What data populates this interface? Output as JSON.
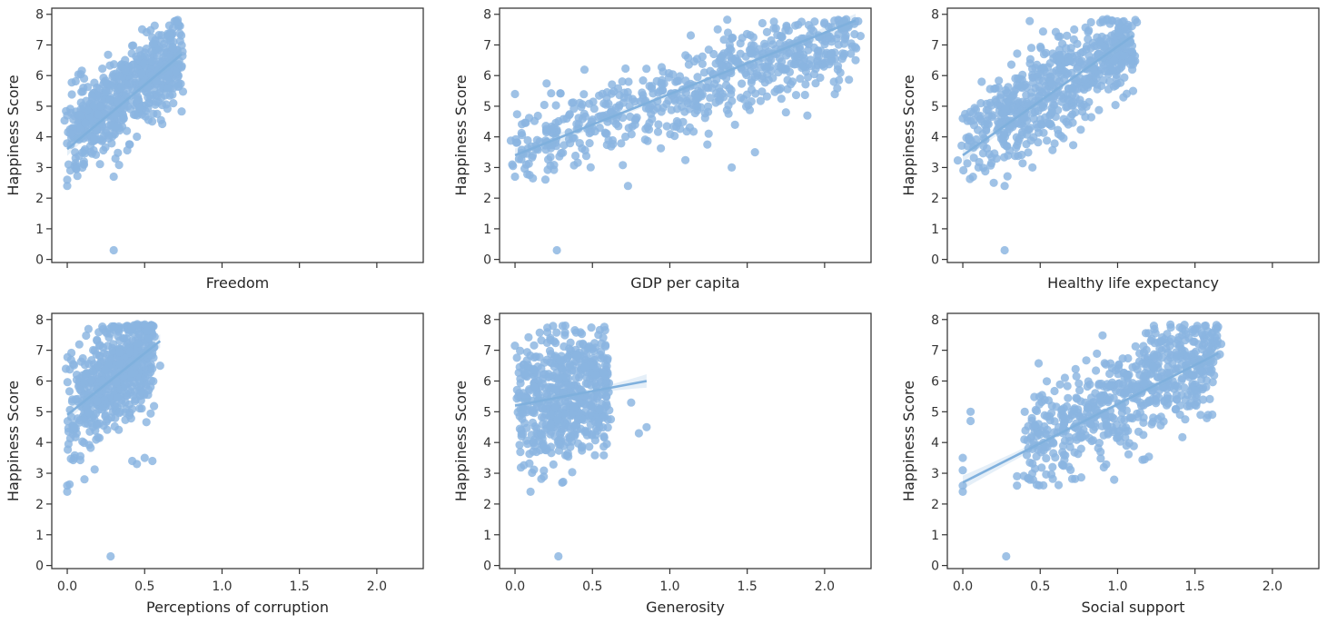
{
  "chart_data": [
    {
      "type": "scatter",
      "xlabel": "Freedom",
      "ylabel": "Happiness Score",
      "xlim": [
        -0.1,
        2.3
      ],
      "ylim": [
        -0.1,
        8.2
      ],
      "x_ticks": [
        0.0,
        0.5,
        1.0,
        1.5,
        2.0
      ],
      "x_tick_labels_shown": false,
      "y_ticks": [
        0,
        1,
        2,
        3,
        4,
        5,
        6,
        7,
        8
      ],
      "y_tick_labels": [
        "0",
        "1",
        "2",
        "3",
        "4",
        "5",
        "6",
        "7",
        "8"
      ],
      "regression": {
        "x": [
          0.0,
          0.74
        ],
        "y": [
          3.6,
          6.7
        ]
      },
      "cluster": {
        "x_min": 0.0,
        "x_max": 0.74,
        "y_center_at_min": 4.0,
        "y_center_at_max": 6.7,
        "spread": 0.75,
        "count": 620
      },
      "outliers": [
        [
          0.3,
          0.3
        ],
        [
          0.0,
          2.4
        ],
        [
          0.0,
          2.6
        ],
        [
          0.02,
          2.9
        ],
        [
          0.3,
          2.7
        ],
        [
          0.0,
          4.7
        ],
        [
          0.02,
          4.1
        ]
      ]
    },
    {
      "type": "scatter",
      "xlabel": "GDP per capita",
      "ylabel": "Happiness Score",
      "xlim": [
        -0.1,
        2.3
      ],
      "ylim": [
        -0.1,
        8.2
      ],
      "x_ticks": [
        0.0,
        0.5,
        1.0,
        1.5,
        2.0
      ],
      "x_tick_labels_shown": false,
      "y_ticks": [
        0,
        1,
        2,
        3,
        4,
        5,
        6,
        7,
        8
      ],
      "y_tick_labels": [
        "0",
        "1",
        "2",
        "3",
        "4",
        "5",
        "6",
        "7",
        "8"
      ],
      "regression": {
        "x": [
          0.0,
          2.2
        ],
        "y": [
          3.4,
          7.8
        ]
      },
      "cluster": {
        "x_min": 0.0,
        "x_max": 2.2,
        "y_center_at_min": 3.6,
        "y_center_at_max": 7.3,
        "spread": 0.7,
        "count": 650
      },
      "outliers": [
        [
          0.27,
          0.3
        ],
        [
          1.4,
          3.0
        ],
        [
          1.55,
          3.5
        ],
        [
          0.73,
          2.4
        ],
        [
          0.0,
          5.4
        ],
        [
          0.0,
          2.7
        ],
        [
          2.2,
          6.5
        ],
        [
          1.75,
          4.8
        ]
      ]
    },
    {
      "type": "scatter",
      "xlabel": "Healthy life expectancy",
      "ylabel": "Happiness Score",
      "xlim": [
        -0.1,
        2.3
      ],
      "ylim": [
        -0.1,
        8.2
      ],
      "x_ticks": [
        0.0,
        0.5,
        1.0,
        1.5,
        2.0
      ],
      "x_tick_labels_shown": false,
      "y_ticks": [
        0,
        1,
        2,
        3,
        4,
        5,
        6,
        7,
        8
      ],
      "y_tick_labels": [
        "0",
        "1",
        "2",
        "3",
        "4",
        "5",
        "6",
        "7",
        "8"
      ],
      "regression": {
        "x": [
          0.0,
          1.1
        ],
        "y": [
          3.4,
          7.3
        ]
      },
      "cluster": {
        "x_min": 0.0,
        "x_max": 1.1,
        "y_center_at_min": 3.9,
        "y_center_at_max": 7.0,
        "spread": 0.75,
        "count": 620
      },
      "outliers": [
        [
          0.27,
          0.3
        ],
        [
          0.27,
          2.4
        ],
        [
          0.0,
          4.6
        ],
        [
          0.2,
          2.5
        ],
        [
          1.1,
          5.5
        ],
        [
          0.45,
          3.0
        ]
      ]
    },
    {
      "type": "scatter",
      "xlabel": "Perceptions of corruption",
      "ylabel": "Happiness Score",
      "xlim": [
        -0.1,
        2.3
      ],
      "ylim": [
        -0.1,
        8.2
      ],
      "x_ticks": [
        0.0,
        0.5,
        1.0,
        1.5,
        2.0
      ],
      "x_tick_labels": [
        "0.0",
        "0.5",
        "1.0",
        "1.5",
        "2.0"
      ],
      "y_ticks": [
        0,
        1,
        2,
        3,
        4,
        5,
        6,
        7,
        8
      ],
      "y_tick_labels": [
        "0",
        "1",
        "2",
        "3",
        "4",
        "5",
        "6",
        "7",
        "8"
      ],
      "regression": {
        "x": [
          0.0,
          0.6
        ],
        "y": [
          4.9,
          7.3
        ]
      },
      "cluster": {
        "x_min": 0.0,
        "x_max": 0.55,
        "y_center_at_min": 4.9,
        "y_center_at_max": 7.2,
        "spread": 0.9,
        "count": 560
      },
      "outliers": [
        [
          0.28,
          0.3
        ],
        [
          0.0,
          2.4
        ],
        [
          0.0,
          2.6
        ],
        [
          0.45,
          3.3
        ],
        [
          0.5,
          3.5
        ],
        [
          0.55,
          3.4
        ],
        [
          0.42,
          3.4
        ],
        [
          0.6,
          6.5
        ],
        [
          0.55,
          6.4
        ]
      ]
    },
    {
      "type": "scatter",
      "xlabel": "Generosity",
      "ylabel": "Happiness Score",
      "xlim": [
        -0.1,
        2.3
      ],
      "ylim": [
        -0.1,
        8.2
      ],
      "x_ticks": [
        0.0,
        0.5,
        1.0,
        1.5,
        2.0
      ],
      "x_tick_labels": [
        "0.0",
        "0.5",
        "1.0",
        "1.5",
        "2.0"
      ],
      "y_ticks": [
        0,
        1,
        2,
        3,
        4,
        5,
        6,
        7,
        8
      ],
      "y_tick_labels": [
        "0",
        "1",
        "2",
        "3",
        "4",
        "5",
        "6",
        "7",
        "8"
      ],
      "regression": {
        "x": [
          0.0,
          0.85
        ],
        "y": [
          5.2,
          6.0
        ]
      },
      "cluster": {
        "x_min": 0.0,
        "x_max": 0.6,
        "y_center_at_min": 5.2,
        "y_center_at_max": 5.6,
        "spread": 1.1,
        "count": 560
      },
      "outliers": [
        [
          0.28,
          0.3
        ],
        [
          0.1,
          2.4
        ],
        [
          0.85,
          4.5
        ],
        [
          0.8,
          4.3
        ],
        [
          0.75,
          5.3
        ]
      ]
    },
    {
      "type": "scatter",
      "xlabel": "Social support",
      "ylabel": "Happiness Score",
      "xlim": [
        -0.1,
        2.3
      ],
      "ylim": [
        -0.1,
        8.2
      ],
      "x_ticks": [
        0.0,
        0.5,
        1.0,
        1.5,
        2.0
      ],
      "x_tick_labels": [
        "0.0",
        "0.5",
        "1.0",
        "1.5",
        "2.0"
      ],
      "y_ticks": [
        0,
        1,
        2,
        3,
        4,
        5,
        6,
        7,
        8
      ],
      "y_tick_labels": [
        "0",
        "1",
        "2",
        "3",
        "4",
        "5",
        "6",
        "7",
        "8"
      ],
      "regression": {
        "x": [
          0.0,
          1.65
        ],
        "y": [
          2.7,
          6.9
        ]
      },
      "cluster": {
        "x_min": 0.4,
        "x_max": 1.65,
        "y_center_at_min": 3.9,
        "y_center_at_max": 6.9,
        "spread": 0.85,
        "count": 640
      },
      "outliers": [
        [
          0.28,
          0.3
        ],
        [
          0.0,
          2.4
        ],
        [
          0.0,
          2.6
        ],
        [
          0.0,
          3.5
        ],
        [
          0.05,
          4.7
        ],
        [
          0.05,
          5.0
        ],
        [
          0.35,
          2.6
        ],
        [
          0.35,
          2.9
        ],
        [
          0.0,
          3.1
        ]
      ]
    }
  ]
}
